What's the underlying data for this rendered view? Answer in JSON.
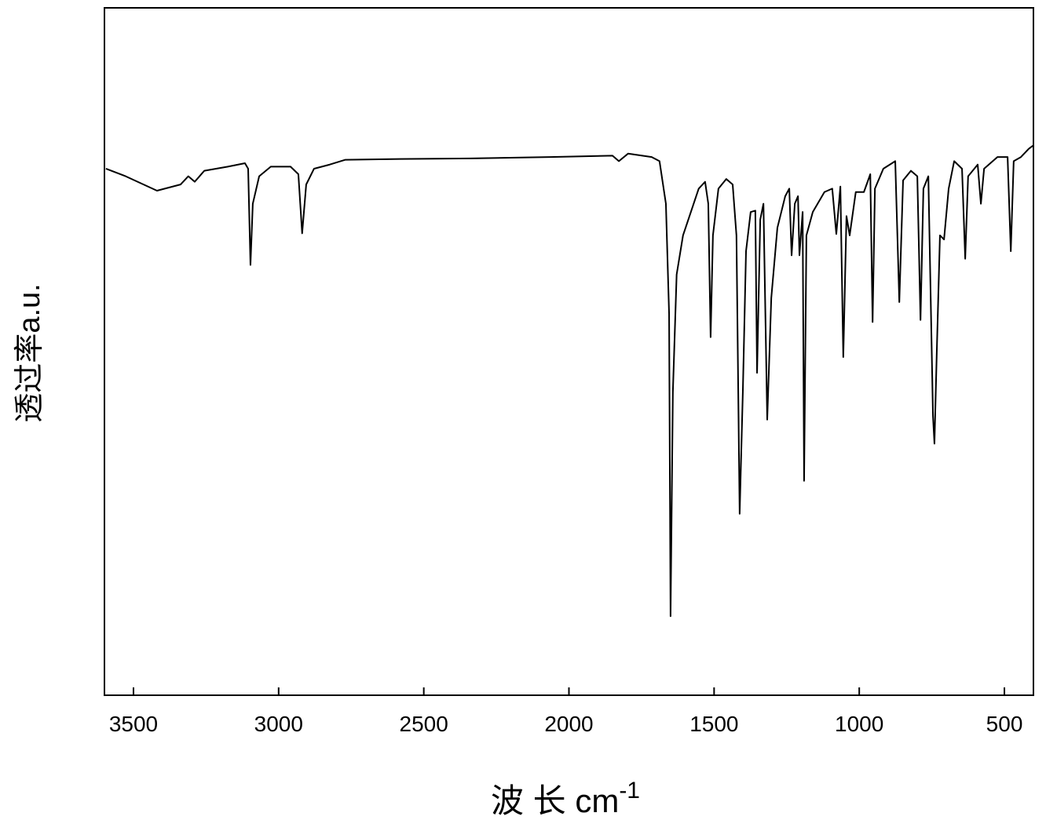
{
  "chart_data": {
    "type": "line",
    "ylabel": "透过率a.u.",
    "xlabel": "波 长 cm",
    "xlabel_superscript": "-1",
    "xlim": [
      3600,
      400
    ],
    "xticks": [
      3500,
      3000,
      2500,
      2000,
      1500,
      1000,
      500
    ],
    "ylim": [
      0,
      100
    ],
    "series": [
      {
        "color": "#000000",
        "x": [
          3595,
          3527,
          3419,
          3338,
          3311,
          3289,
          3256,
          3175,
          3116,
          3105,
          3097,
          3089,
          3067,
          3027,
          2959,
          2932,
          2919,
          2905,
          2878,
          2824,
          2770,
          2607,
          2337,
          2066,
          1850,
          1828,
          1796,
          1715,
          1688,
          1666,
          1655,
          1650,
          1642,
          1629,
          1607,
          1580,
          1553,
          1531,
          1520,
          1512,
          1504,
          1485,
          1458,
          1436,
          1423,
          1412,
          1401,
          1390,
          1374,
          1358,
          1352,
          1341,
          1330,
          1317,
          1303,
          1282,
          1255,
          1241,
          1233,
          1222,
          1211,
          1206,
          1195,
          1190,
          1182,
          1160,
          1120,
          1093,
          1079,
          1065,
          1055,
          1044,
          1033,
          1012,
          984,
          962,
          954,
          946,
          917,
          876,
          862,
          849,
          822,
          800,
          789,
          779,
          762,
          746,
          741,
          733,
          722,
          708,
          692,
          673,
          646,
          635,
          625,
          592,
          581,
          570,
          524,
          489,
          478,
          468,
          443,
          416,
          400
        ],
        "values": [
          76.6,
          75.5,
          73.4,
          74.3,
          75.5,
          74.7,
          76.3,
          76.9,
          77.4,
          76.6,
          62.6,
          71.5,
          75.5,
          76.9,
          76.9,
          75.8,
          67.2,
          74.3,
          76.6,
          77.2,
          77.9,
          78.0,
          78.1,
          78.3,
          78.5,
          77.7,
          78.8,
          78.3,
          77.7,
          71.5,
          55.5,
          11.5,
          44.1,
          61.2,
          66.9,
          70.3,
          73.7,
          74.7,
          71.5,
          52.1,
          66.9,
          73.7,
          75.1,
          74.3,
          66.9,
          26.4,
          44.1,
          64.6,
          70.3,
          70.5,
          46.9,
          69.2,
          71.5,
          40.1,
          57.8,
          68.0,
          72.6,
          73.7,
          64.0,
          71.5,
          72.6,
          64.0,
          70.3,
          31.2,
          66.9,
          70.3,
          73.2,
          73.7,
          67.1,
          74.0,
          49.2,
          69.7,
          66.9,
          73.2,
          73.2,
          75.8,
          54.3,
          73.7,
          76.6,
          77.7,
          57.2,
          74.9,
          76.3,
          75.5,
          54.6,
          73.7,
          75.5,
          40.6,
          36.6,
          49.8,
          66.9,
          66.3,
          73.7,
          77.7,
          76.6,
          63.5,
          75.5,
          77.2,
          71.5,
          76.6,
          78.3,
          78.3,
          64.6,
          77.7,
          78.3,
          79.5,
          80.0
        ]
      }
    ]
  }
}
